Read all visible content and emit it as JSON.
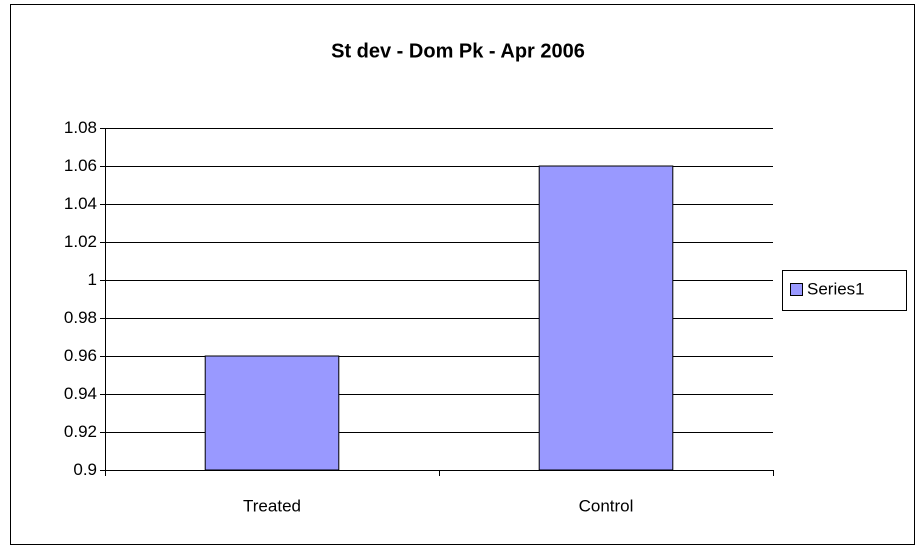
{
  "chart_data": {
    "type": "bar",
    "title": "St dev - Dom Pk - Apr 2006",
    "categories": [
      "Treated",
      "Control"
    ],
    "series": [
      {
        "name": "Series1",
        "color": "#9999ff",
        "values": [
          0.96,
          1.06
        ]
      }
    ],
    "ylim": [
      0.9,
      1.08
    ],
    "yticks": [
      0.9,
      0.92,
      0.94,
      0.96,
      0.98,
      1,
      1.02,
      1.04,
      1.06,
      1.08
    ],
    "grid": true,
    "legend": "right"
  }
}
